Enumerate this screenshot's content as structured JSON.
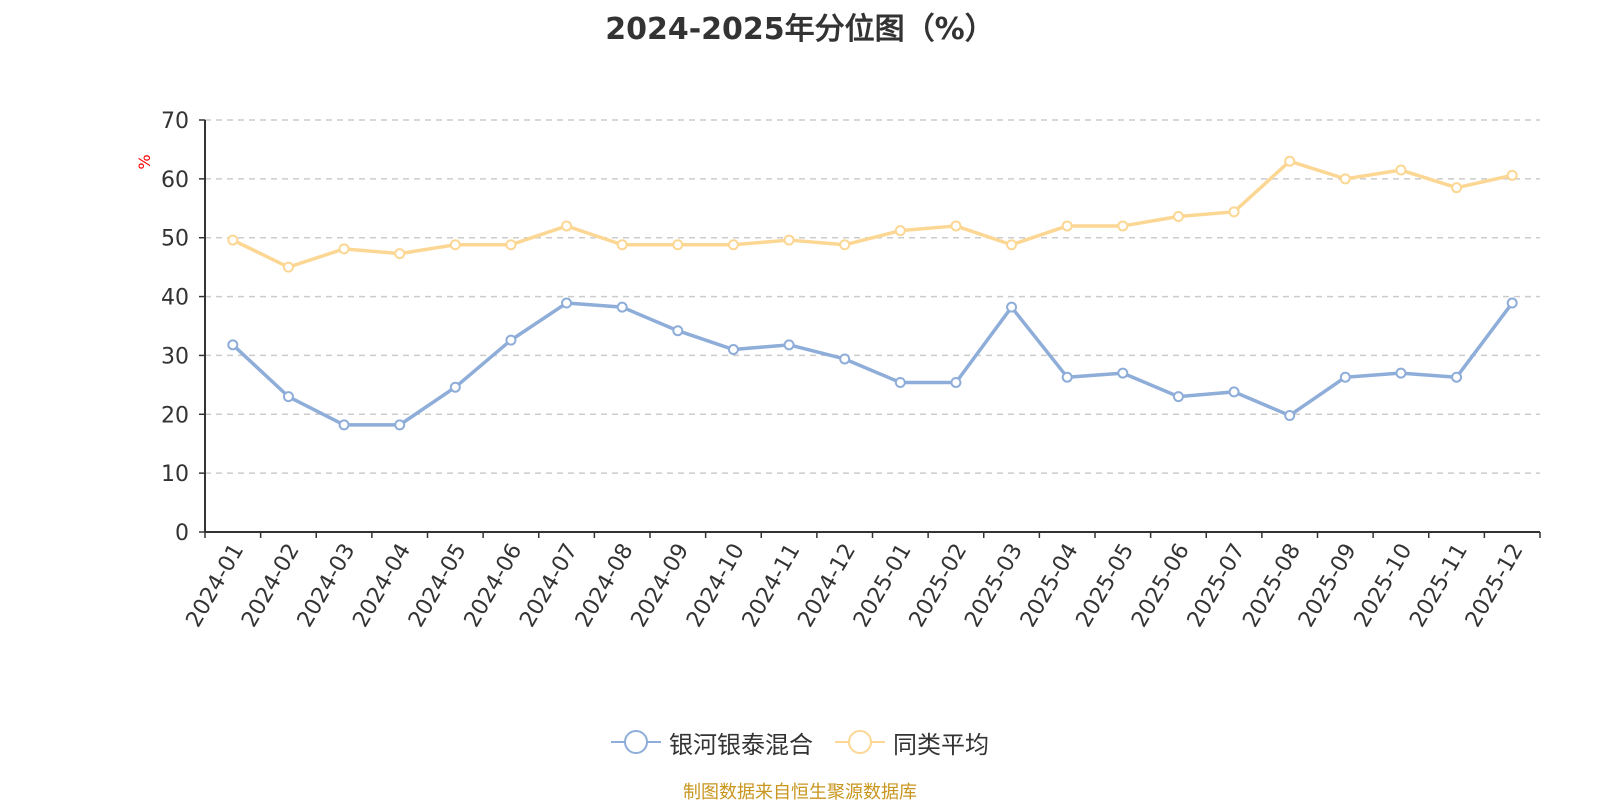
{
  "colors": {
    "series1": "#8eadd8",
    "series2": "#fcd794",
    "axis": "#333333",
    "grid": "#cccccc",
    "unit": "#ff0000",
    "source": "#c8961e"
  },
  "chart_data": {
    "type": "line",
    "title": "2024-2025年分位图（%）",
    "ylabel": "%",
    "xlabel": "",
    "ylim": [
      0,
      70
    ],
    "yticks": [
      0,
      10,
      20,
      30,
      40,
      50,
      60,
      70
    ],
    "grid": true,
    "legend_position": "bottom-center",
    "categories": [
      "2024-01",
      "2024-02",
      "2024-03",
      "2024-04",
      "2024-05",
      "2024-06",
      "2024-07",
      "2024-08",
      "2024-09",
      "2024-10",
      "2024-11",
      "2024-12",
      "2025-01",
      "2025-02",
      "2025-03",
      "2025-04",
      "2025-05",
      "2025-06",
      "2025-07",
      "2025-08",
      "2025-09",
      "2025-10",
      "2025-11",
      "2025-12"
    ],
    "series": [
      {
        "name": "银河银泰混合",
        "color": "#8eadd8",
        "values": [
          31.8,
          23.0,
          18.2,
          18.2,
          24.6,
          32.6,
          38.9,
          38.2,
          34.2,
          31.0,
          31.8,
          29.4,
          25.4,
          25.4,
          38.2,
          26.3,
          27.0,
          23.0,
          23.8,
          19.8,
          26.3,
          27.0,
          26.3,
          38.9
        ]
      },
      {
        "name": "同类平均",
        "color": "#fcd794",
        "values": [
          49.6,
          45.0,
          48.1,
          47.3,
          48.8,
          48.8,
          52.0,
          48.8,
          48.8,
          48.8,
          49.6,
          48.8,
          51.2,
          52.0,
          48.8,
          52.0,
          52.0,
          53.6,
          54.4,
          63.0,
          60.0,
          61.5,
          58.5,
          60.6
        ]
      }
    ]
  },
  "source_note": "制图数据来自恒生聚源数据库"
}
